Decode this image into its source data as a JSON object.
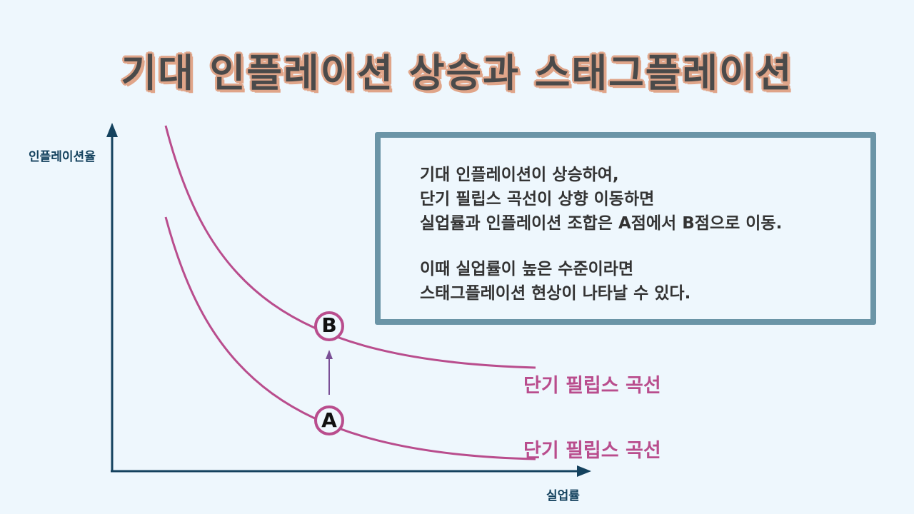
{
  "title": "기대 인플레이션 상승과 스태그플레이션",
  "axes": {
    "y_label": "인플레이션율",
    "x_label": "실업률"
  },
  "curves": [
    {
      "label": "단기 필립스 곡선"
    },
    {
      "label": "단기 필립스 곡선"
    }
  ],
  "points": {
    "a": "A",
    "b": "B"
  },
  "info": {
    "lines": [
      "기대 인플레이션이 상승하여,",
      "단기 필립스 곡선이 상향 이동하면",
      "실업률과 인플레이션 조합은 A점에서 B점으로 이동.",
      "이때 실업률이 높은 수준이라면",
      "스태그플레이션 현상이 나타날 수 있다."
    ]
  },
  "colors": {
    "curve": "#b94d8d",
    "axis": "#14425e",
    "arrow": "#7a4f96",
    "box_border": "#6b95a7",
    "title_outline": "#e0a589"
  }
}
